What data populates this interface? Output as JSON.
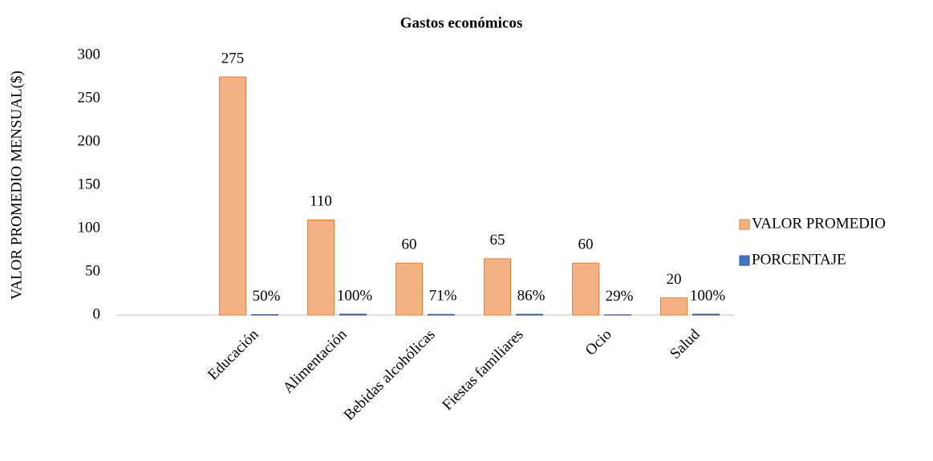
{
  "chart_data": {
    "type": "bar",
    "title": "Gastos económicos",
    "y_label": "VALOR PROMEDIO MENSUAL($)",
    "categories": [
      null,
      "Educación",
      "Alimentación",
      "Bebidas alcohólicas",
      "Fiestas familiares",
      "Ocio",
      "Salud"
    ],
    "series": [
      {
        "name": "VALOR PROMEDIO",
        "color": "#f4b183",
        "values": [
          null,
          275,
          110,
          60,
          65,
          60,
          20
        ]
      },
      {
        "name": "PORCENTAJE",
        "color": "#4472c4",
        "values": [
          null,
          0.5,
          1,
          0.71,
          0.86,
          0.29,
          1
        ],
        "value_labels": [
          null,
          "50%",
          "100%",
          "71%",
          "86%",
          "29%",
          "100%"
        ]
      }
    ],
    "ylim": [
      0,
      300
    ],
    "yticks": [
      0,
      50,
      100,
      150,
      200,
      250,
      300
    ],
    "grid": false,
    "legend": "right"
  }
}
